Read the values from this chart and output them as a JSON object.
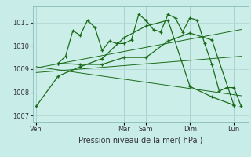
{
  "xlabel": "Pression niveau de la mer( hPa )",
  "bg_color": "#c8ece8",
  "plot_bg_color": "#cceee8",
  "grid_color": "#b0d8d4",
  "line_color": "#1a6b1a",
  "ylim": [
    1006.7,
    1011.7
  ],
  "yticks": [
    1007,
    1008,
    1009,
    1010,
    1011
  ],
  "x_day_labels": [
    "Ven",
    "Mar",
    "Sam",
    "Dim",
    "Lun"
  ],
  "x_day_positions": [
    0,
    12,
    15,
    21,
    27
  ],
  "xlim": [
    -0.5,
    29
  ],
  "line_main_x": [
    3,
    4,
    5,
    6,
    7,
    8,
    9,
    10,
    11,
    12,
    13,
    14,
    15,
    16,
    17,
    18,
    19,
    20,
    21,
    22,
    23,
    24,
    25,
    26,
    27,
    28
  ],
  "line_main_y": [
    1009.25,
    1009.55,
    1010.65,
    1010.45,
    1011.1,
    1010.8,
    1009.8,
    1010.2,
    1010.1,
    1010.1,
    1010.25,
    1011.35,
    1011.1,
    1010.7,
    1010.6,
    1011.35,
    1011.2,
    1010.6,
    1011.2,
    1011.1,
    1010.1,
    1009.2,
    1008.05,
    1008.2,
    1008.2,
    1007.4
  ],
  "line_b_x": [
    3,
    6,
    9,
    12,
    15,
    18,
    21,
    24,
    27
  ],
  "line_b_y": [
    1009.25,
    1009.2,
    1009.2,
    1009.5,
    1009.5,
    1010.2,
    1010.55,
    1010.25,
    1007.45
  ],
  "line_c_x": [
    0,
    3,
    6,
    9,
    12,
    15,
    18,
    21,
    24,
    27
  ],
  "line_c_y": [
    1007.4,
    1008.7,
    1009.1,
    1009.45,
    1010.35,
    1010.85,
    1011.1,
    1008.25,
    1007.8,
    1007.45
  ],
  "trend1_x": [
    0,
    28
  ],
  "trend1_y": [
    1009.05,
    1010.7
  ],
  "trend2_x": [
    0,
    28
  ],
  "trend2_y": [
    1009.1,
    1007.85
  ],
  "trend3_x": [
    0,
    28
  ],
  "trend3_y": [
    1008.85,
    1009.55
  ]
}
